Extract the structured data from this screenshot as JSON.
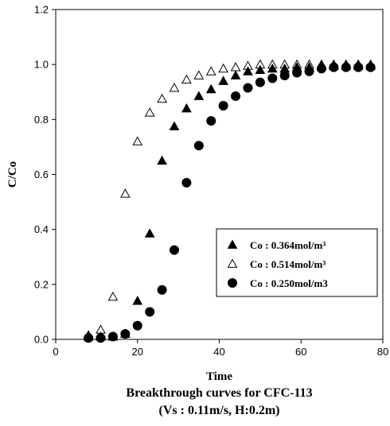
{
  "chart_data": {
    "type": "scatter",
    "title": "",
    "xlabel": "Time",
    "ylabel": "C/Co",
    "caption_lines": [
      "Breakthrough curves for CFC-113",
      "(Vs : 0.11m/s, H:0.2m)"
    ],
    "xlim": [
      0,
      80
    ],
    "ylim": [
      0,
      1.2
    ],
    "x_ticks": [
      0,
      20,
      40,
      60,
      80
    ],
    "x_tick_labels": [
      "0",
      "20",
      "40",
      "60",
      "80"
    ],
    "y_ticks": [
      0,
      0.2,
      0.4,
      0.6,
      0.8,
      1.0,
      1.2
    ],
    "y_tick_labels": [
      "0.0",
      "0.2",
      "0.4",
      "0.6",
      "0.8",
      "1.0",
      "1.2"
    ],
    "grid": false,
    "legend_position": "bottom-right",
    "series": [
      {
        "name": "Co : 0.364mol/m³",
        "marker": "filled-triangle",
        "x": [
          8,
          11,
          14,
          17,
          20,
          23,
          26,
          29,
          32,
          35,
          38,
          41,
          44,
          47,
          50,
          53,
          56,
          59,
          62,
          65,
          68,
          71,
          74,
          77
        ],
        "y": [
          0.01,
          0.01,
          0.01,
          0.02,
          0.14,
          0.385,
          0.65,
          0.775,
          0.84,
          0.885,
          0.91,
          0.94,
          0.96,
          0.975,
          0.98,
          0.985,
          0.985,
          0.99,
          0.99,
          0.995,
          0.995,
          0.995,
          0.995,
          0.995
        ]
      },
      {
        "name": "Co : 0.514mol/m³",
        "marker": "open-triangle",
        "x": [
          8,
          11,
          14,
          17,
          20,
          23,
          26,
          29,
          32,
          35,
          38,
          41,
          44,
          47,
          50,
          53,
          56,
          59,
          62,
          65,
          68,
          71,
          74,
          77
        ],
        "y": [
          0.015,
          0.035,
          0.155,
          0.53,
          0.72,
          0.825,
          0.875,
          0.915,
          0.945,
          0.96,
          0.975,
          0.985,
          0.99,
          0.995,
          1.0,
          1.0,
          1.0,
          1.0,
          1.0,
          1.0,
          1.0,
          1.0,
          1.0,
          1.0
        ]
      },
      {
        "name": "Co : 0.250mol/m3",
        "marker": "filled-circle",
        "x": [
          8,
          11,
          14,
          17,
          20,
          23,
          26,
          29,
          32,
          35,
          38,
          41,
          44,
          47,
          50,
          53,
          56,
          59,
          62,
          65,
          68,
          71,
          74,
          77
        ],
        "y": [
          0.005,
          0.005,
          0.01,
          0.02,
          0.05,
          0.1,
          0.18,
          0.325,
          0.57,
          0.705,
          0.795,
          0.85,
          0.885,
          0.915,
          0.935,
          0.95,
          0.96,
          0.97,
          0.975,
          0.985,
          0.99,
          0.99,
          0.99,
          0.99
        ]
      }
    ]
  }
}
